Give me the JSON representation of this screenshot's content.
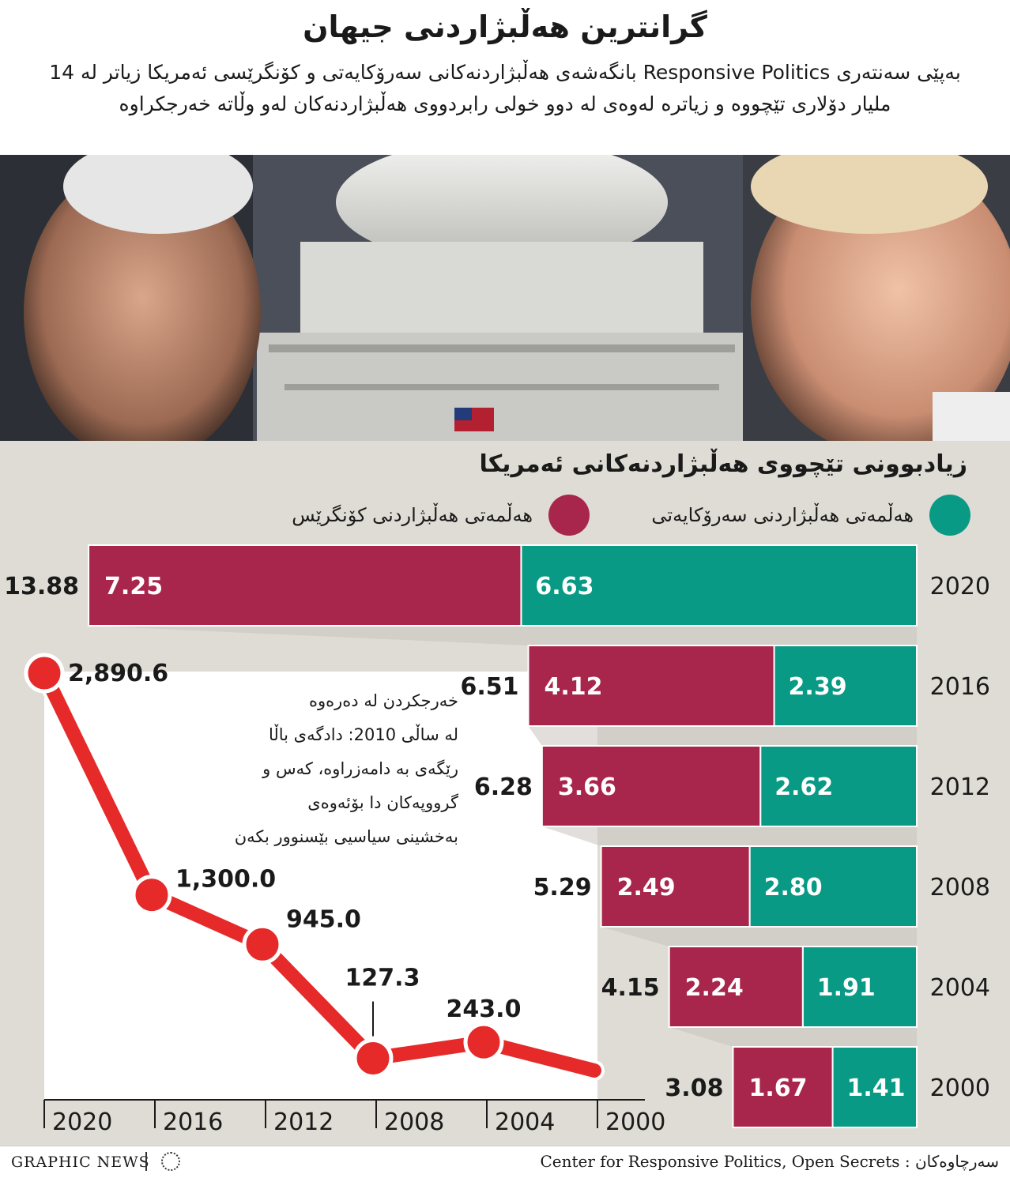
{
  "header": {
    "title": "گرانترین هەڵبژاردنی جیهان",
    "subtitle": "بەپێی سەنتەری Responsive Politics بانگەشەی هەڵبژاردنەکانی سەرۆکایەتی و کۆنگرێسی ئەمریکا زیاتر لە 14 ملیار دۆلاری تێچووە و زیاترە لەوەی لە دوو خولی رابردووی هەڵبژاردنەکان لەو وڵاتە خەرجکراوە"
  },
  "legend": {
    "presidential": "هەڵمەتی هەڵبژاردنی سەرۆکایەتی",
    "congressional": "هەڵمەتی هەڵبژاردنی کۆنگرێس"
  },
  "annotation": {
    "lines": [
      "خەرجکردن لە دەرەوە",
      "لە ساڵی 2010: دادگەی باڵا",
      "رێگەی بە دامەزراوە، کەس و",
      "گرووپەکان دا بۆئەوەی",
      "بەخشینی سیاسیی بێسنوور بکەن"
    ]
  },
  "colors": {
    "presidential": "#089a84",
    "congressional": "#a8264c",
    "line": "#e62a2a",
    "background": "#dedcd4"
  },
  "footer": {
    "brand": "GRAPHIC NEWS",
    "source": "Center for Responsive Politics, Open Secrets : سەرچاوەکان"
  },
  "chart_data": [
    {
      "type": "bar",
      "title": "زیادبوونی تێچووی هەڵبژاردنەکانی ئەمریکا",
      "stacked": true,
      "orientation": "horizontal",
      "categories": [
        "2020",
        "2016",
        "2012",
        "2008",
        "2004",
        "2000"
      ],
      "series": [
        {
          "name": "هەڵمەتی هەڵبژاردنی سەرۆکایەتی",
          "values": [
            6.63,
            2.39,
            2.62,
            2.8,
            1.91,
            1.41
          ]
        },
        {
          "name": "هەڵمەتی هەڵبژاردنی کۆنگرێس",
          "values": [
            7.25,
            4.12,
            3.66,
            2.49,
            2.24,
            1.67
          ]
        }
      ],
      "totals": [
        "13.88",
        "6.51",
        "6.28",
        "5.29",
        "4.15",
        "3.08"
      ],
      "segment_labels": {
        "presidential": [
          "6.63",
          "2.39",
          "2.62",
          "2.80",
          "1.91",
          "1.41"
        ],
        "congressional": [
          "7.25",
          "4.12",
          "3.66",
          "2.49",
          "2.24",
          "1.67"
        ]
      },
      "legend_position": "top"
    },
    {
      "type": "line",
      "x": [
        "2020",
        "2016",
        "2012",
        "2008",
        "2004",
        "2000"
      ],
      "points": [
        {
          "x": "2020",
          "y": 2890.6,
          "label": "2,890.6"
        },
        {
          "x": "2016",
          "y": 1300.0,
          "label": "1,300.0"
        },
        {
          "x": "2012",
          "y": 945.0,
          "label": "945.0"
        },
        {
          "x": "2008",
          "y": 127.3,
          "label": "127.3"
        },
        {
          "x": "2004",
          "y": 243.0,
          "label": "243.0"
        }
      ],
      "end": {
        "x": "2000",
        "y": 40
      }
    }
  ]
}
